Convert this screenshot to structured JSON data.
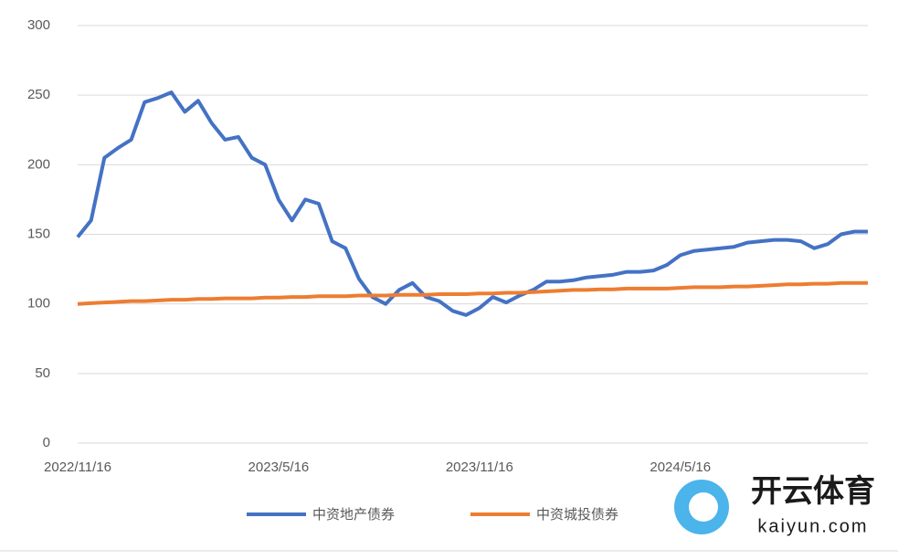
{
  "chart_data": {
    "type": "line",
    "categories": [
      "2022/11/16",
      null,
      null,
      null,
      null,
      null,
      null,
      null,
      null,
      null,
      null,
      null,
      null,
      null,
      null,
      "2023/5/16",
      null,
      null,
      null,
      null,
      null,
      null,
      null,
      null,
      null,
      null,
      null,
      null,
      null,
      null,
      "2023/11/16",
      null,
      null,
      null,
      null,
      null,
      null,
      null,
      null,
      null,
      null,
      null,
      null,
      null,
      null,
      "2024/5/16",
      null,
      null,
      null,
      null,
      null,
      null,
      null,
      null,
      null,
      null,
      null,
      null,
      null,
      null
    ],
    "series": [
      {
        "name": "中资地产债券",
        "color": "#4472c4",
        "values": [
          148,
          160,
          205,
          212,
          218,
          245,
          248,
          252,
          238,
          246,
          230,
          218,
          220,
          205,
          200,
          175,
          160,
          175,
          172,
          145,
          140,
          118,
          105,
          100,
          110,
          115,
          105,
          102,
          95,
          92,
          97,
          105,
          101,
          106,
          110,
          116,
          116,
          117,
          119,
          120,
          121,
          123,
          123,
          124,
          128,
          135,
          138,
          139,
          140,
          141,
          144,
          145,
          146,
          146,
          145,
          140,
          143,
          150,
          152,
          152
        ]
      },
      {
        "name": "中资城投债券",
        "color": "#ed7d31",
        "values": [
          100,
          100.5,
          101,
          101.5,
          102,
          102,
          102.5,
          103,
          103,
          103.5,
          103.5,
          104,
          104,
          104,
          104.5,
          104.5,
          105,
          105,
          105.5,
          105.5,
          105.5,
          106,
          106,
          106,
          106.5,
          106.5,
          106.5,
          107,
          107,
          107,
          107.5,
          107.5,
          108,
          108,
          108.5,
          109,
          109.5,
          110,
          110,
          110.5,
          110.5,
          111,
          111,
          111,
          111,
          111.5,
          112,
          112,
          112,
          112.5,
          112.5,
          113,
          113.5,
          114,
          114,
          114.5,
          114.5,
          115,
          115,
          115
        ]
      }
    ],
    "ylim": [
      0,
      300
    ],
    "yticks": [
      0,
      50,
      100,
      150,
      200,
      250,
      300
    ],
    "grid": true,
    "legend": "bottom",
    "annotations": [
      "开云体育",
      "kaiyun.com"
    ]
  }
}
